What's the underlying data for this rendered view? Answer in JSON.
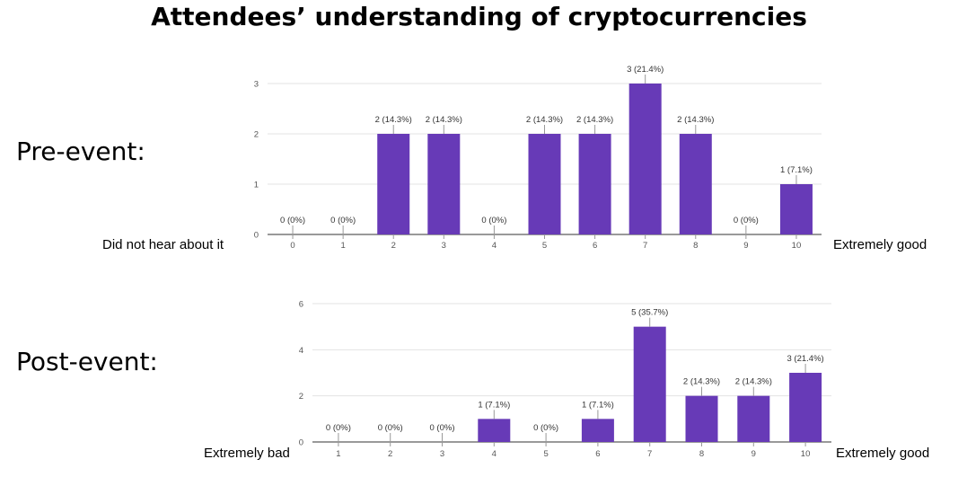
{
  "title": "Attendees’ understanding of cryptocurrencies",
  "pre": {
    "label": "Pre-event:",
    "left_end": "Did not hear about it",
    "right_end": "Extremely good"
  },
  "post": {
    "label": "Post-event:",
    "left_end": "Extremely bad",
    "right_end": "Extremely good"
  },
  "colors": {
    "bar": "#673ab7",
    "grid": "#e3e3e3",
    "axis": "#333333"
  },
  "chart_data": [
    {
      "type": "bar",
      "name": "pre-event",
      "categories": [
        "0",
        "1",
        "2",
        "3",
        "4",
        "5",
        "6",
        "7",
        "8",
        "9",
        "10"
      ],
      "values": [
        0,
        0,
        2,
        2,
        0,
        2,
        2,
        3,
        2,
        0,
        1
      ],
      "labels": [
        "0 (0%)",
        "0 (0%)",
        "2 (14.3%)",
        "2 (14.3%)",
        "0 (0%)",
        "2 (14.3%)",
        "2 (14.3%)",
        "3 (21.4%)",
        "2 (14.3%)",
        "0 (0%)",
        "1 (7.1%)"
      ],
      "yticks": [
        0,
        1,
        2,
        3
      ],
      "ylim": [
        0,
        3
      ],
      "grid": true
    },
    {
      "type": "bar",
      "name": "post-event",
      "categories": [
        "1",
        "2",
        "3",
        "4",
        "5",
        "6",
        "7",
        "8",
        "9",
        "10"
      ],
      "values": [
        0,
        0,
        0,
        1,
        0,
        1,
        5,
        2,
        2,
        3
      ],
      "labels": [
        "0 (0%)",
        "0 (0%)",
        "0 (0%)",
        "1 (7.1%)",
        "0 (0%)",
        "1 (7.1%)",
        "5 (35.7%)",
        "2 (14.3%)",
        "2 (14.3%)",
        "3 (21.4%)"
      ],
      "yticks": [
        0,
        2,
        4,
        6
      ],
      "ylim": [
        0,
        6
      ],
      "grid": true
    }
  ]
}
